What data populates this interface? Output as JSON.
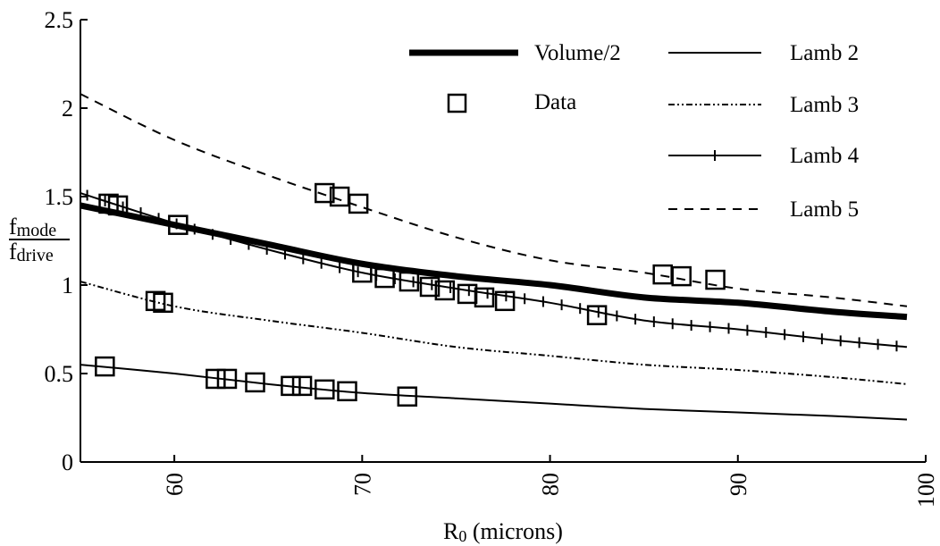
{
  "chart_data": {
    "type": "line",
    "xlabel": {
      "main": "R",
      "sub": "0",
      "rest": " (microns)"
    },
    "ylabel": {
      "numerator": "f",
      "numerator_sub": "mode",
      "denominator": "f",
      "denominator_sub": "drive"
    },
    "xlim": [
      55,
      100
    ],
    "ylim": [
      0,
      2.5
    ],
    "xticks": [
      60,
      70,
      80,
      90,
      100
    ],
    "yticks": [
      0,
      0.5,
      1,
      1.5,
      2,
      2.5
    ],
    "ytick_labels": [
      "0",
      "0.5",
      "1",
      "1.5",
      "2",
      "2.5"
    ],
    "xtick_labels": [
      "60",
      "70",
      "80",
      "90",
      "100"
    ],
    "grid": false,
    "legend": {
      "placement": "top-right"
    },
    "series": [
      {
        "name": "Volume/2",
        "style": "thick",
        "x": [
          55,
          60,
          65,
          70,
          75,
          80,
          85,
          90,
          95,
          99
        ],
        "y": [
          1.45,
          1.34,
          1.23,
          1.12,
          1.05,
          1.0,
          0.93,
          0.9,
          0.85,
          0.82
        ]
      },
      {
        "name": "Lamb 2",
        "style": "solid",
        "x": [
          55,
          60,
          65,
          70,
          75,
          80,
          85,
          90,
          95,
          99
        ],
        "y": [
          0.55,
          0.5,
          0.44,
          0.39,
          0.36,
          0.33,
          0.3,
          0.28,
          0.26,
          0.24
        ]
      },
      {
        "name": "Lamb 3",
        "style": "dashdot",
        "x": [
          55,
          60,
          65,
          70,
          75,
          80,
          85,
          90,
          95,
          99
        ],
        "y": [
          1.02,
          0.88,
          0.8,
          0.73,
          0.65,
          0.6,
          0.55,
          0.52,
          0.48,
          0.44
        ]
      },
      {
        "name": "Lamb 4",
        "style": "tick",
        "x": [
          55,
          60,
          65,
          70,
          75,
          80,
          85,
          90,
          95,
          99
        ],
        "y": [
          1.52,
          1.35,
          1.2,
          1.07,
          0.98,
          0.9,
          0.8,
          0.75,
          0.69,
          0.65
        ]
      },
      {
        "name": "Lamb 5",
        "style": "dashed",
        "x": [
          55,
          60,
          65,
          70,
          75,
          80,
          85,
          90,
          95,
          99
        ],
        "y": [
          2.08,
          1.82,
          1.62,
          1.44,
          1.27,
          1.14,
          1.07,
          0.98,
          0.93,
          0.88
        ]
      }
    ],
    "data_points": {
      "name": "Data",
      "x": [
        56.5,
        57.0,
        60.2,
        59.0,
        59.4,
        68.0,
        68.8,
        69.8,
        70.0,
        71.2,
        72.5,
        73.6,
        74.4,
        75.6,
        76.5,
        77.6,
        82.5,
        86.0,
        87.0,
        88.8,
        56.3,
        62.2,
        62.8,
        64.3,
        66.2,
        66.8,
        68.0,
        69.2,
        72.4
      ],
      "y": [
        1.46,
        1.45,
        1.34,
        0.91,
        0.9,
        1.52,
        1.5,
        1.46,
        1.07,
        1.04,
        1.02,
        0.99,
        0.97,
        0.95,
        0.93,
        0.91,
        0.83,
        1.06,
        1.05,
        1.03,
        0.54,
        0.47,
        0.47,
        0.45,
        0.43,
        0.43,
        0.41,
        0.4,
        0.37
      ]
    },
    "legend_entries": [
      "Volume/2",
      "Data",
      "Lamb 2",
      "Lamb 3",
      "Lamb 4",
      "Lamb 5"
    ]
  }
}
